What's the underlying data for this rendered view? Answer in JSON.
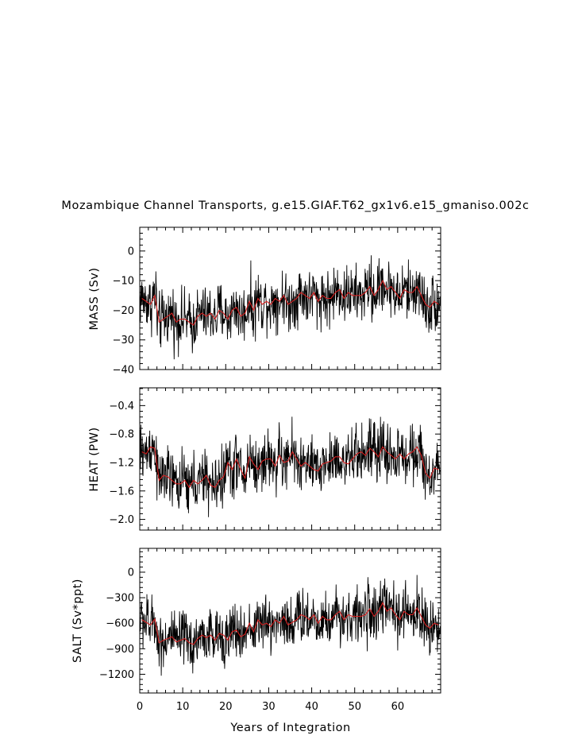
{
  "chart_data": {
    "type": "line",
    "title": "Mozambique Channel Transports, g.e15.GIAF.T62_gx1v6.e15_gmaniso.002c",
    "xlabel": "Years of Integration",
    "xlim": [
      0,
      70
    ],
    "xticks": [
      0,
      10,
      20,
      30,
      40,
      50,
      60
    ],
    "xtick_labels": [
      "0",
      "10",
      "20",
      "30",
      "40",
      "50",
      "60"
    ],
    "grid": false,
    "series_colors": {
      "monthly": "#000000",
      "annual_mean": "#d62020"
    },
    "panels": [
      {
        "ylabel": "MASS (Sv)",
        "ylim": [
          -40,
          8
        ],
        "yticks": [
          0,
          -10,
          -20,
          -30,
          -40
        ],
        "ytick_labels": [
          "0",
          "−10",
          "−20",
          "−30",
          "−40"
        ],
        "annual_mean": [
          -16,
          -17,
          -18,
          -15,
          -24,
          -23,
          -22,
          -21,
          -24,
          -23,
          -23,
          -24,
          -25,
          -22,
          -21,
          -22,
          -21,
          -23,
          -20,
          -21,
          -23,
          -20,
          -19,
          -22,
          -21,
          -17,
          -20,
          -16,
          -18,
          -17,
          -18,
          -16,
          -17,
          -15,
          -18,
          -17,
          -16,
          -14,
          -15,
          -16,
          -14,
          -17,
          -15,
          -16,
          -16,
          -14,
          -13,
          -16,
          -14,
          -15,
          -15,
          -15,
          -14,
          -12,
          -15,
          -13,
          -10,
          -13,
          -12,
          -14,
          -16,
          -13,
          -14,
          -14,
          -12,
          -15,
          -18,
          -19,
          -17,
          -18
        ],
        "monthly_base": -20,
        "monthly_trend": 0.09,
        "monthly_spread": 7
      },
      {
        "ylabel": "HEAT (PW)",
        "ylim": [
          -2.15,
          -0.15
        ],
        "yticks": [
          -0.4,
          -0.8,
          -1.2,
          -1.6,
          -2.0
        ],
        "ytick_labels": [
          "−0.4",
          "−0.8",
          "−1.2",
          "−1.6",
          "−2.0"
        ],
        "annual_mean": [
          -1.05,
          -1.08,
          -0.98,
          -1.0,
          -1.45,
          -1.38,
          -1.4,
          -1.45,
          -1.5,
          -1.5,
          -1.45,
          -1.55,
          -1.45,
          -1.5,
          -1.45,
          -1.38,
          -1.52,
          -1.55,
          -1.45,
          -1.4,
          -1.2,
          -1.3,
          -1.15,
          -1.3,
          -1.42,
          -1.12,
          -1.22,
          -1.3,
          -1.18,
          -1.15,
          -1.15,
          -1.25,
          -1.1,
          -1.2,
          -1.18,
          -1.05,
          -1.15,
          -1.25,
          -1.2,
          -1.25,
          -1.3,
          -1.32,
          -1.22,
          -1.2,
          -1.18,
          -1.12,
          -1.12,
          -1.2,
          -1.22,
          -1.15,
          -1.08,
          -1.05,
          -1.1,
          -1.0,
          -1.05,
          -1.12,
          -0.98,
          -1.05,
          -1.1,
          -1.15,
          -1.08,
          -1.15,
          -1.08,
          -1.05,
          -0.98,
          -1.1,
          -1.35,
          -1.42,
          -1.28,
          -1.3
        ],
        "monthly_base": -1.35,
        "monthly_trend": 0.004,
        "monthly_spread": 0.3
      },
      {
        "ylabel": "SALT (Sv*ppt)",
        "ylim": [
          -1420,
          280
        ],
        "yticks": [
          0,
          -300,
          -600,
          -900,
          -1200
        ],
        "ytick_labels": [
          "0",
          "−300",
          "−600",
          "−900",
          "−1200"
        ],
        "annual_mean": [
          -560,
          -590,
          -620,
          -550,
          -830,
          -800,
          -780,
          -760,
          -820,
          -800,
          -780,
          -830,
          -850,
          -780,
          -740,
          -770,
          -740,
          -800,
          -720,
          -740,
          -800,
          -700,
          -680,
          -760,
          -730,
          -600,
          -700,
          -560,
          -620,
          -600,
          -640,
          -560,
          -600,
          -520,
          -620,
          -590,
          -560,
          -500,
          -520,
          -560,
          -500,
          -600,
          -520,
          -560,
          -560,
          -500,
          -460,
          -560,
          -500,
          -520,
          -520,
          -520,
          -500,
          -430,
          -520,
          -460,
          -360,
          -460,
          -420,
          -500,
          -560,
          -460,
          -500,
          -500,
          -420,
          -520,
          -620,
          -660,
          -600,
          -620
        ],
        "monthly_base": -700,
        "monthly_trend": 3.2,
        "monthly_spread": 240
      }
    ]
  }
}
